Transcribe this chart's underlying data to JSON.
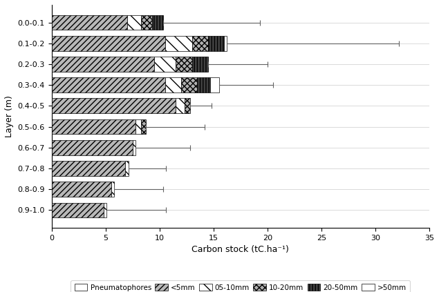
{
  "layers": [
    "0.0-0.1",
    "0.1-0.2",
    "0.2-0.3",
    "0.3-0.4",
    "0.4-0.5",
    "0.5-0.6",
    "0.6-0.7",
    "0.7-0.8",
    "0.8-0.9",
    "0.9-1.0"
  ],
  "categories": [
    "Pneumatophores",
    "<5mm",
    "05-10mm",
    "10-20mm",
    "20-50mm",
    ">50mm"
  ],
  "data": [
    [
      0.0,
      7.0,
      1.3,
      1.0,
      1.0,
      0.0
    ],
    [
      0.0,
      10.5,
      2.5,
      1.5,
      1.5,
      0.2
    ],
    [
      0.0,
      9.5,
      2.0,
      1.5,
      1.5,
      0.0
    ],
    [
      0.0,
      10.5,
      1.5,
      1.5,
      1.2,
      0.8
    ],
    [
      0.0,
      11.5,
      0.8,
      0.5,
      0.0,
      0.0
    ],
    [
      0.0,
      7.8,
      0.5,
      0.4,
      0.0,
      0.0
    ],
    [
      0.0,
      7.5,
      0.3,
      0.0,
      0.0,
      0.0
    ],
    [
      0.0,
      6.8,
      0.3,
      0.0,
      0.0,
      0.0
    ],
    [
      0.0,
      5.5,
      0.3,
      0.0,
      0.0,
      0.0
    ],
    [
      0.0,
      4.8,
      0.3,
      0.0,
      0.0,
      0.0
    ]
  ],
  "errors_low": [
    0.0,
    0.0,
    0.0,
    0.0,
    0.0,
    0.0,
    0.0,
    0.0,
    0.0,
    0.0
  ],
  "errors_high": [
    9.0,
    16.0,
    5.5,
    5.0,
    2.0,
    5.5,
    5.0,
    3.5,
    4.5,
    5.5
  ],
  "xlabel": "Carbon stock (tC.ha⁻¹)",
  "ylabel": "Layer (m)",
  "xlim": [
    0,
    35
  ],
  "xticks": [
    0,
    5,
    10,
    15,
    20,
    25,
    30,
    35
  ],
  "bar_height": 0.72,
  "hatch_patterns": [
    "",
    "////",
    "\\\\",
    "xxxx",
    "||||",
    "===="
  ],
  "face_colors": [
    "white",
    "#b8b8b8",
    "white",
    "#b0b0b0",
    "#404040",
    "white"
  ],
  "edge_colors": [
    "black",
    "black",
    "black",
    "black",
    "black",
    "black"
  ]
}
